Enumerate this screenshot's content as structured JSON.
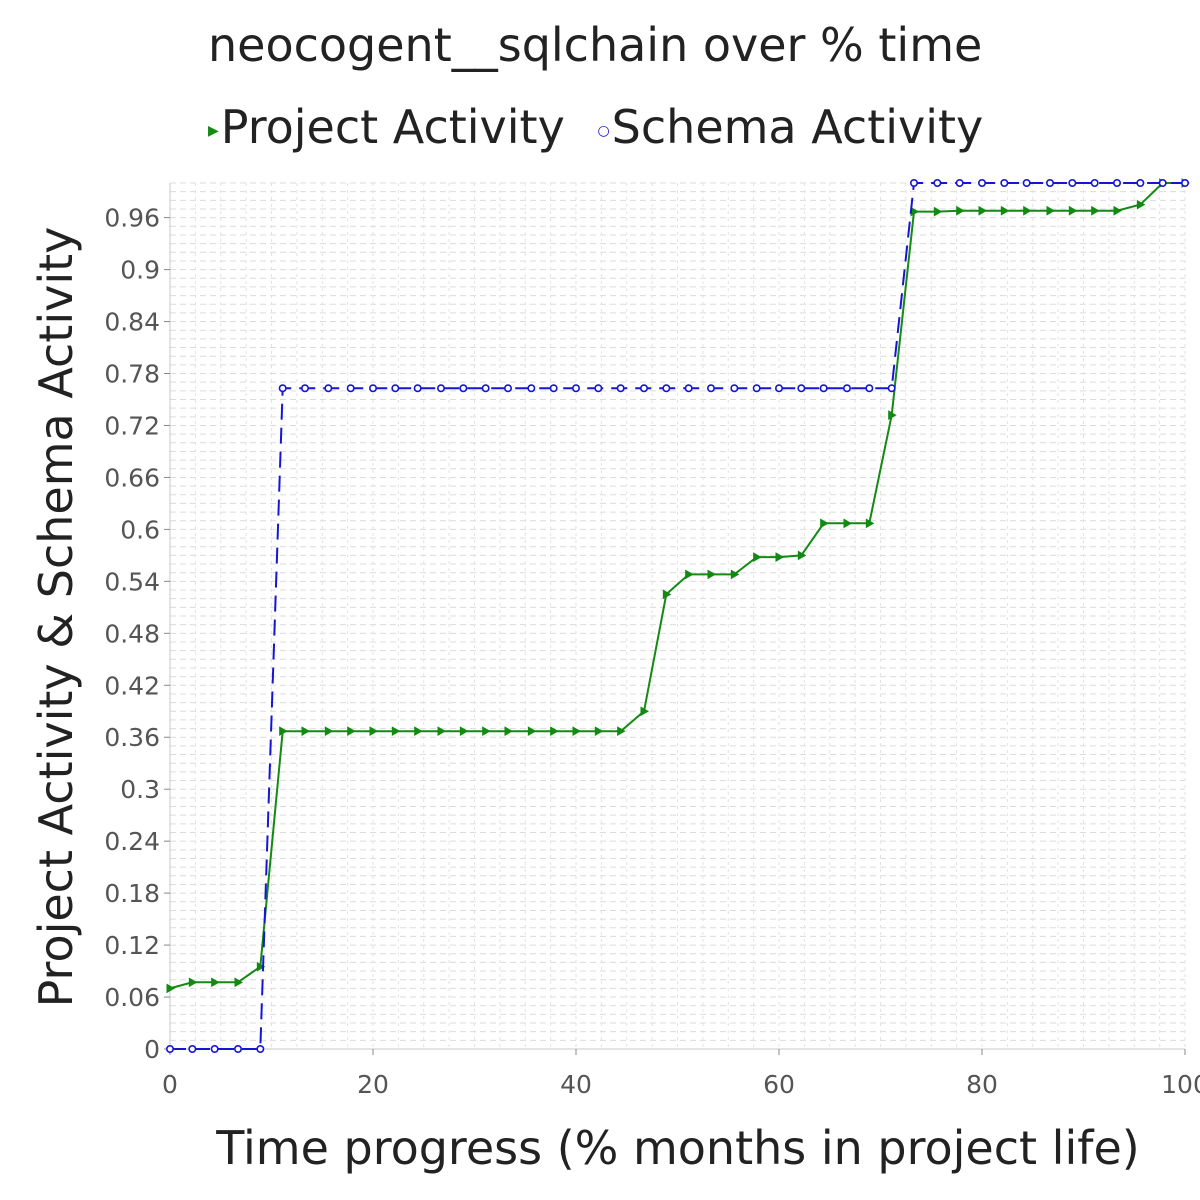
{
  "chart_data": {
    "type": "line",
    "title": "neocogent__sqlchain over % time",
    "xlabel": "Time progress (% months in project life)",
    "ylabel": "Project Activity & Schema Activity",
    "xlim": [
      0,
      100
    ],
    "ylim": [
      0,
      1.0
    ],
    "xticks": [
      "0",
      "20",
      "40",
      "60",
      "80",
      "100"
    ],
    "yticks": [
      "0",
      "0.06",
      "0.12",
      "0.18",
      "0.24",
      "0.3",
      "0.36",
      "0.42",
      "0.48",
      "0.54",
      "0.6",
      "0.66",
      "0.72",
      "0.78",
      "0.84",
      "0.9",
      "0.96"
    ],
    "grid": true,
    "legend_position": "top",
    "series": [
      {
        "name": "Project Activity",
        "color": "#138a13",
        "line_style": "solid",
        "marker": "triangle-right",
        "x": [
          0,
          2.2,
          4.4,
          6.7,
          8.9,
          11.1,
          13.3,
          15.6,
          17.8,
          20.0,
          22.2,
          24.4,
          26.7,
          28.9,
          31.1,
          33.3,
          35.6,
          37.8,
          40.0,
          42.2,
          44.4,
          46.7,
          48.9,
          51.1,
          53.3,
          55.6,
          57.8,
          60.0,
          62.2,
          64.4,
          66.7,
          68.9,
          71.1,
          73.3,
          75.6,
          77.8,
          80.0,
          82.2,
          84.4,
          86.7,
          88.9,
          91.1,
          93.3,
          95.6,
          97.8,
          100.0
        ],
        "y": [
          0.07,
          0.077,
          0.077,
          0.077,
          0.095,
          0.367,
          0.367,
          0.367,
          0.367,
          0.367,
          0.367,
          0.367,
          0.367,
          0.367,
          0.367,
          0.367,
          0.367,
          0.367,
          0.367,
          0.367,
          0.367,
          0.39,
          0.525,
          0.548,
          0.548,
          0.548,
          0.568,
          0.568,
          0.57,
          0.607,
          0.607,
          0.607,
          0.732,
          0.967,
          0.967,
          0.968,
          0.968,
          0.968,
          0.968,
          0.968,
          0.968,
          0.968,
          0.968,
          0.975,
          1.0,
          1.0
        ]
      },
      {
        "name": "Schema Activity",
        "color": "#1515d6",
        "line_style": "dashed",
        "marker": "circle",
        "x": [
          0,
          2.2,
          4.4,
          6.7,
          8.9,
          11.1,
          13.3,
          15.6,
          17.8,
          20.0,
          22.2,
          24.4,
          26.7,
          28.9,
          31.1,
          33.3,
          35.6,
          37.8,
          40.0,
          42.2,
          44.4,
          46.7,
          48.9,
          51.1,
          53.3,
          55.6,
          57.8,
          60.0,
          62.2,
          64.4,
          66.7,
          68.9,
          71.1,
          73.3,
          75.6,
          77.8,
          80.0,
          82.2,
          84.4,
          86.7,
          88.9,
          91.1,
          93.3,
          95.6,
          97.8,
          100.0
        ],
        "y": [
          0,
          0,
          0,
          0,
          0,
          0.763,
          0.763,
          0.763,
          0.763,
          0.763,
          0.763,
          0.763,
          0.763,
          0.763,
          0.763,
          0.763,
          0.763,
          0.763,
          0.763,
          0.763,
          0.763,
          0.763,
          0.763,
          0.763,
          0.763,
          0.763,
          0.763,
          0.763,
          0.763,
          0.763,
          0.763,
          0.763,
          0.763,
          1.0,
          1.0,
          1.0,
          1.0,
          1.0,
          1.0,
          1.0,
          1.0,
          1.0,
          1.0,
          1.0,
          1.0,
          1.0
        ]
      }
    ]
  }
}
